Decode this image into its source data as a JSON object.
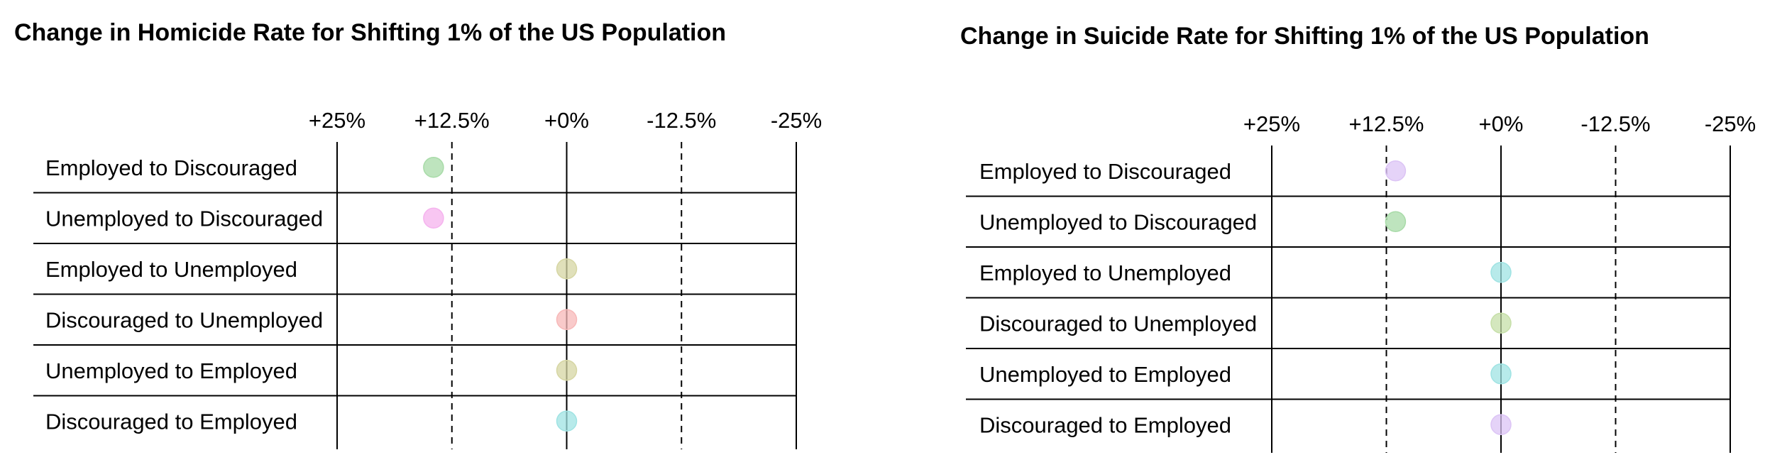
{
  "chart_data": [
    {
      "type": "scatter",
      "title": "Change in Homicide Rate for Shifting 1% of the US Population",
      "xlabel": "",
      "ylabel": "",
      "x_ticks": [
        25,
        12.5,
        0,
        -12.5,
        -25
      ],
      "x_tick_labels": [
        "+25%",
        "+12.5%",
        "+0%",
        "-12.5%",
        "-25%"
      ],
      "x_direction": "reversed",
      "xlim": [
        25,
        -25
      ],
      "gridlines": "dashed at +12.5% and -12.5%, solid at +25%, +0%, -25%",
      "categories": [
        "Employed to Discouraged",
        "Unemployed to Discouraged",
        "Employed to Unemployed",
        "Discouraged to Unemployed",
        "Unemployed to Employed",
        "Discouraged to Employed"
      ],
      "values": [
        14.5,
        14.5,
        0,
        0,
        0,
        0
      ],
      "point_colors": [
        "#a8dba8",
        "#f5b3ee",
        "#d6d6a3",
        "#f7b8b8",
        "#d6d6a3",
        "#9fe3e3"
      ]
    },
    {
      "type": "scatter",
      "title": "Change in Suicide Rate for Shifting 1% of the US Population",
      "xlabel": "",
      "ylabel": "",
      "x_ticks": [
        25,
        12.5,
        0,
        -12.5,
        -25
      ],
      "x_tick_labels": [
        "+25%",
        "+12.5%",
        "+0%",
        "-12.5%",
        "-25%"
      ],
      "x_direction": "reversed",
      "xlim": [
        25,
        -25
      ],
      "gridlines": "dashed at +12.5% and -12.5%, solid at +25%, +0%, -25%",
      "categories": [
        "Employed to Discouraged",
        "Unemployed to Discouraged",
        "Employed to Unemployed",
        "Discouraged to Unemployed",
        "Unemployed to Employed",
        "Discouraged to Employed"
      ],
      "values": [
        11.5,
        11.5,
        0,
        0,
        0,
        0
      ],
      "point_colors": [
        "#dcc4f5",
        "#a8dba8",
        "#9fe3e3",
        "#c6dfa8",
        "#9fe3e3",
        "#dcc4f5"
      ]
    }
  ]
}
